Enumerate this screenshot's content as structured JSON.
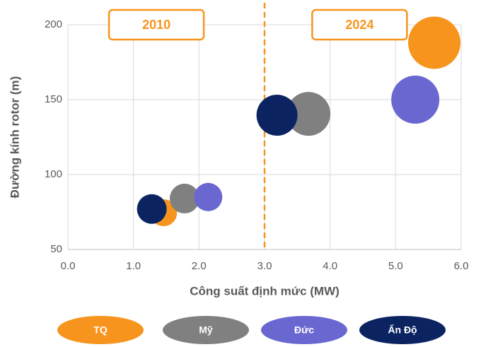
{
  "chart_data": {
    "type": "bubble",
    "xlabel": "Công suất định mức (MW)",
    "ylabel": "Đường kính rotor (m)",
    "annotations": [
      {
        "text": "2010",
        "x": 1.35
      },
      {
        "text": "2024",
        "x": 4.45
      }
    ],
    "reference_line_x": 3.0,
    "xlim": [
      0,
      6
    ],
    "xticks": [
      {
        "value": 0,
        "label": "0.0"
      },
      {
        "value": 1,
        "label": "1.0"
      },
      {
        "value": 2,
        "label": "2.0"
      },
      {
        "value": 3,
        "label": "3.0"
      },
      {
        "value": 4,
        "label": "4.0"
      },
      {
        "value": 5,
        "label": "5.0"
      },
      {
        "value": 6,
        "label": "6.0"
      }
    ],
    "ylim": [
      50,
      200
    ],
    "yticks": [
      50,
      100,
      150,
      200
    ],
    "grid": true,
    "series": [
      {
        "name": "TQ",
        "color": "#f7941d",
        "x": [
          1.46,
          5.59
        ],
        "values": [
          74.5,
          188
        ],
        "sizes": [
          19,
          37
        ]
      },
      {
        "name": "Mỹ",
        "color": "#808080",
        "x": [
          1.78,
          3.67
        ],
        "values": [
          84,
          140.5
        ],
        "sizes": [
          21,
          31
        ]
      },
      {
        "name": "Đức",
        "color": "#6a67d1",
        "x": [
          2.14,
          5.3
        ],
        "values": [
          85,
          150
        ],
        "sizes": [
          20,
          34
        ]
      },
      {
        "name": "Ấn Độ",
        "color": "#0b2461",
        "x": [
          1.28,
          3.19
        ],
        "values": [
          77,
          139.6
        ],
        "sizes": [
          21,
          29
        ]
      }
    ]
  }
}
